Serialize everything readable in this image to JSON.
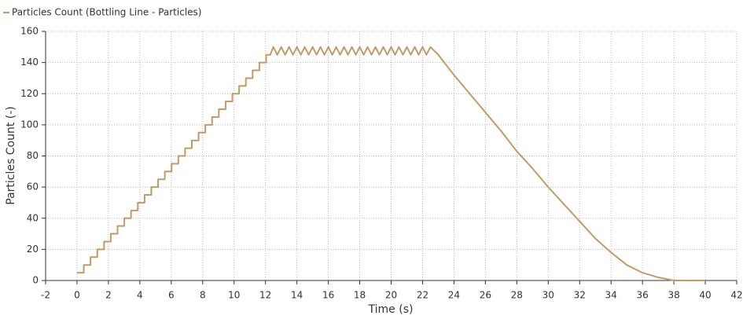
{
  "chart_data": {
    "type": "line",
    "legend_title": "Particles Count (Bottling Line - Particles)",
    "x_label": "Time (s)",
    "y_label": "Particles Count (-)",
    "grid": true,
    "xlim": [
      -2,
      42
    ],
    "xticks": [
      -2,
      0,
      2,
      4,
      6,
      8,
      10,
      12,
      14,
      16,
      18,
      20,
      22,
      24,
      26,
      28,
      30,
      32,
      34,
      36,
      38,
      40,
      42
    ],
    "ylim": [
      0,
      160
    ],
    "yticks": [
      0,
      20,
      40,
      60,
      80,
      100,
      120,
      140,
      160
    ],
    "series": [
      {
        "name": "Particles Count (Bottling Line - Particles)",
        "color": "#c29a6a",
        "x": [
          0,
          0.43,
          0.43,
          0.86,
          0.86,
          1.29,
          1.29,
          1.72,
          1.72,
          2.15,
          2.15,
          2.58,
          2.58,
          3.01,
          3.01,
          3.44,
          3.44,
          3.87,
          3.87,
          4.3,
          4.3,
          4.73,
          4.73,
          5.16,
          5.16,
          5.59,
          5.59,
          6.02,
          6.02,
          6.45,
          6.45,
          6.88,
          6.88,
          7.31,
          7.31,
          7.74,
          7.74,
          8.17,
          8.17,
          8.6,
          8.6,
          9.03,
          9.03,
          9.46,
          9.46,
          9.89,
          9.89,
          10.32,
          10.32,
          10.75,
          10.75,
          11.18,
          11.18,
          11.61,
          11.61,
          12.04,
          12.04,
          12.3,
          12.5,
          12.75,
          13,
          13.25,
          13.5,
          13.75,
          14,
          14.25,
          14.5,
          14.75,
          15,
          15.25,
          15.5,
          15.75,
          16,
          16.25,
          16.5,
          16.75,
          17,
          17.25,
          17.5,
          17.75,
          18,
          18.25,
          18.5,
          18.75,
          19,
          19.25,
          19.5,
          19.75,
          20,
          20.25,
          20.5,
          20.75,
          21,
          21.25,
          21.5,
          21.75,
          22,
          22.25,
          22.5,
          23,
          24,
          25,
          26,
          27,
          28,
          29,
          30,
          31,
          32,
          33,
          34,
          35,
          36,
          37,
          38,
          40
        ],
        "values": [
          5,
          5,
          10,
          10,
          15,
          15,
          20,
          20,
          25,
          25,
          30,
          30,
          35,
          35,
          40,
          40,
          45,
          45,
          50,
          50,
          55,
          55,
          60,
          60,
          65,
          65,
          70,
          70,
          75,
          75,
          80,
          80,
          85,
          85,
          90,
          90,
          95,
          95,
          100,
          100,
          105,
          105,
          110,
          110,
          115,
          115,
          120,
          120,
          125,
          125,
          130,
          130,
          135,
          135,
          140,
          140,
          145,
          145,
          150,
          145,
          150,
          145,
          150,
          145,
          150,
          145,
          150,
          145,
          150,
          145,
          150,
          145,
          150,
          145,
          150,
          145,
          150,
          145,
          150,
          145,
          150,
          145,
          150,
          145,
          150,
          145,
          150,
          145,
          150,
          145,
          150,
          145,
          150,
          145,
          150,
          145,
          150,
          145,
          150,
          145,
          132,
          120,
          108,
          96,
          83,
          72,
          60,
          49,
          38,
          27,
          18,
          10,
          5,
          2,
          0,
          0
        ]
      }
    ]
  }
}
